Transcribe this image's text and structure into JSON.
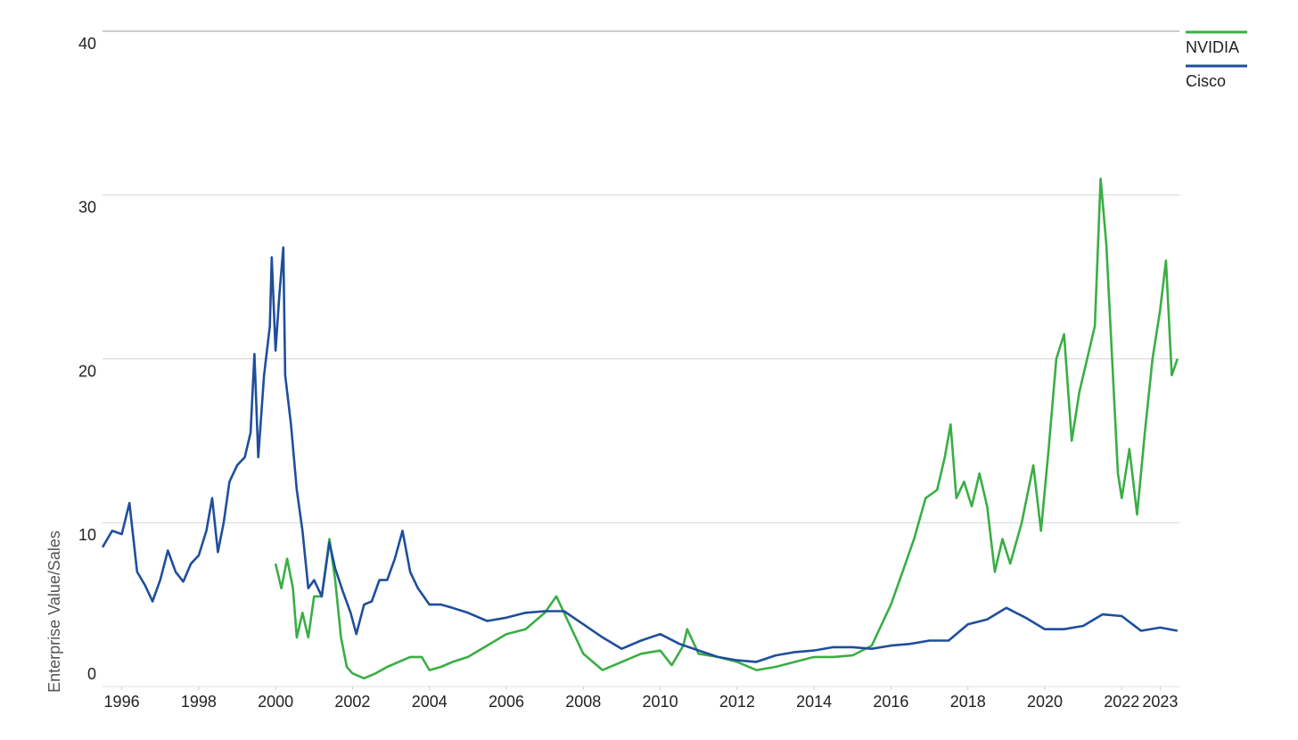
{
  "chart_data": {
    "type": "line",
    "y_label": "Enterprise Value/Sales",
    "xlim": [
      1995.5,
      2023.5
    ],
    "xticks": [
      1996,
      1998,
      2000,
      2002,
      2004,
      2006,
      2008,
      2010,
      2012,
      2014,
      2016,
      2018,
      2020,
      2022,
      2023
    ],
    "ylim": [
      0,
      40
    ],
    "yticks": [
      0,
      10,
      20,
      30,
      40
    ],
    "grid": true,
    "legend": "top-right",
    "series": [
      {
        "name": "NVIDIA",
        "color": "#3aae45",
        "x": [
          2000.0,
          2000.15,
          2000.3,
          2000.45,
          2000.55,
          2000.7,
          2000.85,
          2001.0,
          2001.2,
          2001.4,
          2001.55,
          2001.7,
          2001.85,
          2002.0,
          2002.3,
          2002.6,
          2002.9,
          2003.2,
          2003.5,
          2003.8,
          2004.0,
          2004.3,
          2004.6,
          2005.0,
          2005.5,
          2006.0,
          2006.5,
          2007.0,
          2007.3,
          2007.6,
          2008.0,
          2008.5,
          2009.0,
          2009.5,
          2010.0,
          2010.3,
          2010.6,
          2010.7,
          2011.0,
          2011.5,
          2012.0,
          2012.5,
          2013.0,
          2013.5,
          2014.0,
          2014.5,
          2015.0,
          2015.5,
          2016.0,
          2016.3,
          2016.6,
          2016.9,
          2017.2,
          2017.4,
          2017.55,
          2017.7,
          2017.9,
          2018.1,
          2018.3,
          2018.5,
          2018.7,
          2018.9,
          2019.1,
          2019.4,
          2019.7,
          2019.9,
          2020.1,
          2020.3,
          2020.5,
          2020.7,
          2020.9,
          2021.1,
          2021.3,
          2021.45,
          2021.6,
          2021.75,
          2021.9,
          2022.0,
          2022.2,
          2022.4,
          2022.6,
          2022.8,
          2023.0,
          2023.15,
          2023.3,
          2023.45
        ],
        "values": [
          7.5,
          6.0,
          7.8,
          6.0,
          3.0,
          4.5,
          3.0,
          5.5,
          5.5,
          9.0,
          6.5,
          3.0,
          1.2,
          0.8,
          0.5,
          0.8,
          1.2,
          1.5,
          1.8,
          1.8,
          1.0,
          1.2,
          1.5,
          1.8,
          2.5,
          3.2,
          3.5,
          4.5,
          5.5,
          4.0,
          2.0,
          1.0,
          1.5,
          2.0,
          2.2,
          1.3,
          2.5,
          3.5,
          2.0,
          1.8,
          1.5,
          1.0,
          1.2,
          1.5,
          1.8,
          1.8,
          1.9,
          2.5,
          5.0,
          7.0,
          9.0,
          11.5,
          12.0,
          14.0,
          16.0,
          11.5,
          12.5,
          11.0,
          13.0,
          11.0,
          7.0,
          9.0,
          7.5,
          10.0,
          13.5,
          9.5,
          14.5,
          20.0,
          21.5,
          15.0,
          18.0,
          20.0,
          22.0,
          31.0,
          27.0,
          20.0,
          13.0,
          11.5,
          14.5,
          10.5,
          15.5,
          20.0,
          23.0,
          26.0,
          19.0,
          20.0
        ]
      },
      {
        "name": "Cisco",
        "color": "#1f4e9c",
        "x": [
          1995.5,
          1995.75,
          1996.0,
          1996.2,
          1996.4,
          1996.6,
          1996.8,
          1997.0,
          1997.2,
          1997.4,
          1997.6,
          1997.8,
          1998.0,
          1998.2,
          1998.35,
          1998.5,
          1998.65,
          1998.8,
          1999.0,
          1999.2,
          1999.35,
          1999.45,
          1999.55,
          1999.7,
          1999.85,
          1999.9,
          2000.0,
          2000.1,
          2000.2,
          2000.25,
          2000.4,
          2000.55,
          2000.7,
          2000.85,
          2001.0,
          2001.2,
          2001.4,
          2001.55,
          2001.75,
          2001.95,
          2002.1,
          2002.3,
          2002.5,
          2002.7,
          2002.9,
          2003.1,
          2003.3,
          2003.5,
          2003.7,
          2004.0,
          2004.3,
          2004.6,
          2005.0,
          2005.5,
          2006.0,
          2006.5,
          2007.0,
          2007.5,
          2008.0,
          2008.5,
          2009.0,
          2009.5,
          2010.0,
          2010.5,
          2011.0,
          2011.5,
          2012.0,
          2012.5,
          2013.0,
          2013.5,
          2014.0,
          2014.5,
          2015.0,
          2015.5,
          2016.0,
          2016.5,
          2017.0,
          2017.5,
          2018.0,
          2018.5,
          2019.0,
          2019.5,
          2020.0,
          2020.5,
          2021.0,
          2021.5,
          2022.0,
          2022.5,
          2023.0,
          2023.45
        ],
        "values": [
          8.5,
          9.5,
          9.3,
          11.2,
          7.0,
          6.2,
          5.2,
          6.5,
          8.3,
          7.0,
          6.4,
          7.5,
          8.0,
          9.5,
          11.5,
          8.2,
          10.0,
          12.5,
          13.5,
          14.0,
          15.5,
          20.3,
          14.0,
          19.0,
          22.0,
          26.2,
          20.5,
          24.0,
          26.8,
          19.0,
          16.0,
          12.0,
          9.5,
          6.0,
          6.5,
          5.5,
          8.8,
          7.2,
          5.8,
          4.5,
          3.2,
          5.0,
          5.2,
          6.5,
          6.5,
          7.8,
          9.5,
          7.0,
          6.0,
          5.0,
          5.0,
          4.8,
          4.5,
          4.0,
          4.2,
          4.5,
          4.6,
          4.6,
          3.8,
          3.0,
          2.3,
          2.8,
          3.2,
          2.6,
          2.2,
          1.8,
          1.6,
          1.5,
          1.9,
          2.1,
          2.2,
          2.4,
          2.4,
          2.3,
          2.5,
          2.6,
          2.8,
          2.8,
          3.8,
          4.1,
          4.8,
          4.2,
          3.5,
          3.5,
          3.7,
          4.4,
          4.3,
          3.4,
          3.6,
          3.4
        ]
      }
    ]
  }
}
